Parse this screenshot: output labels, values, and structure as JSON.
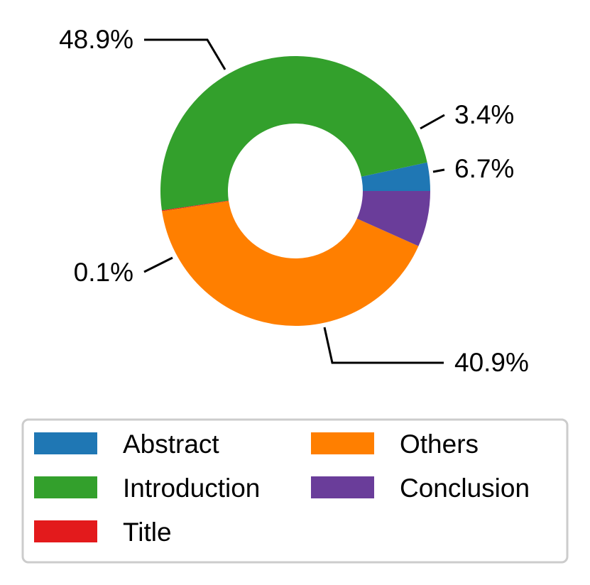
{
  "chart_data": {
    "type": "pie",
    "variant": "donut",
    "start_angle_deg": 0,
    "direction": "counterclockwise",
    "slices": [
      {
        "label": "Abstract",
        "value": 3.4,
        "text": "3.4%",
        "color": "#1f77b4"
      },
      {
        "label": "Introduction",
        "value": 48.9,
        "text": "48.9%",
        "color": "#33a02c"
      },
      {
        "label": "Title",
        "value": 0.1,
        "text": "0.1%",
        "color": "#e31a1c"
      },
      {
        "label": "Others",
        "value": 40.9,
        "text": "40.9%",
        "color": "#ff7f00"
      },
      {
        "label": "Conclusion",
        "value": 6.7,
        "text": "6.7%",
        "color": "#6a3d9a"
      }
    ],
    "legend": {
      "placement": "bottom",
      "columns": 2,
      "entries": [
        "Abstract",
        "Introduction",
        "Title",
        "Others",
        "Conclusion"
      ]
    }
  }
}
